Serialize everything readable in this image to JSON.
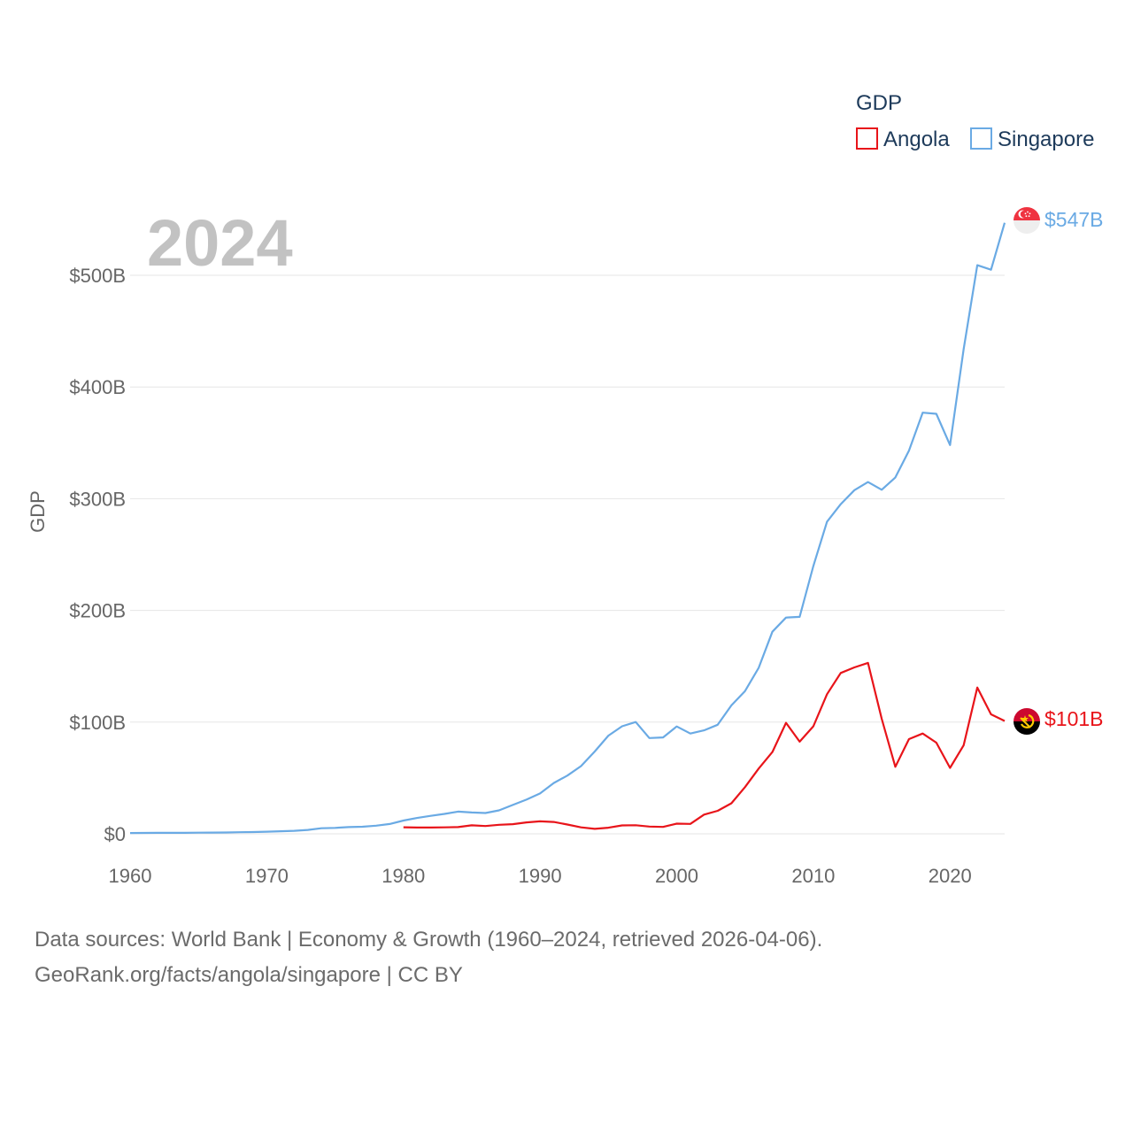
{
  "chart_data": {
    "type": "line",
    "title": "",
    "ylabel": "GDP",
    "xlabel": "",
    "year_label": "2024",
    "legend_title": "GDP",
    "xlim": [
      1960,
      2024
    ],
    "ylim": [
      0,
      500
    ],
    "x_ticks": [
      1960,
      1970,
      1980,
      1990,
      2000,
      2010,
      2020
    ],
    "y_ticks": [
      0,
      100,
      200,
      300,
      400,
      500
    ],
    "y_tick_labels": [
      "$0",
      "$100B",
      "$200B",
      "$300B",
      "$400B",
      "$500B"
    ],
    "series": [
      {
        "name": "Angola",
        "color": "#e8141a",
        "end_label": "$101B",
        "flag_icon": "angola-flag-icon",
        "x": [
          1980,
          1981,
          1982,
          1983,
          1984,
          1985,
          1986,
          1987,
          1988,
          1989,
          1990,
          1991,
          1992,
          1993,
          1994,
          1995,
          1996,
          1997,
          1998,
          1999,
          2000,
          2001,
          2002,
          2003,
          2004,
          2005,
          2006,
          2007,
          2008,
          2009,
          2010,
          2011,
          2012,
          2013,
          2014,
          2015,
          2016,
          2017,
          2018,
          2019,
          2020,
          2021,
          2022,
          2023,
          2024
        ],
        "values": [
          5.9,
          5.6,
          5.6,
          5.8,
          6.0,
          7.6,
          7.0,
          8.1,
          8.6,
          10.2,
          11.2,
          10.6,
          8.3,
          5.8,
          4.4,
          5.5,
          7.5,
          7.7,
          6.5,
          6.2,
          9.1,
          8.9,
          17.2,
          20.6,
          27.3,
          41.8,
          58.4,
          73.2,
          99.4,
          82.5,
          96.3,
          125.0,
          144.0,
          149.0,
          153.0,
          103.0,
          60.0,
          84.8,
          89.8,
          81.6,
          59.0,
          79.3,
          131.0,
          107.0,
          101.0
        ]
      },
      {
        "name": "Singapore",
        "color": "#6aaae4",
        "end_label": "$547B",
        "flag_icon": "singapore-flag-icon",
        "x": [
          1960,
          1961,
          1962,
          1963,
          1964,
          1965,
          1966,
          1967,
          1968,
          1969,
          1970,
          1971,
          1972,
          1973,
          1974,
          1975,
          1976,
          1977,
          1978,
          1979,
          1980,
          1981,
          1982,
          1983,
          1984,
          1985,
          1986,
          1987,
          1988,
          1989,
          1990,
          1991,
          1992,
          1993,
          1994,
          1995,
          1996,
          1997,
          1998,
          1999,
          2000,
          2001,
          2002,
          2003,
          2004,
          2005,
          2006,
          2007,
          2008,
          2009,
          2010,
          2011,
          2012,
          2013,
          2014,
          2015,
          2016,
          2017,
          2018,
          2019,
          2020,
          2021,
          2022,
          2023,
          2024
        ],
        "values": [
          0.7,
          0.8,
          0.9,
          0.9,
          0.9,
          1.0,
          1.1,
          1.2,
          1.4,
          1.6,
          1.9,
          2.3,
          2.7,
          3.5,
          5.0,
          5.3,
          6.0,
          6.3,
          7.3,
          8.8,
          11.9,
          14.2,
          16.1,
          17.8,
          19.9,
          19.1,
          18.6,
          21.0,
          25.8,
          30.6,
          36.1,
          45.5,
          52.1,
          60.6,
          73.7,
          87.9,
          96.3,
          100.1,
          85.7,
          86.3,
          96.1,
          89.8,
          92.6,
          97.6,
          115.0,
          127.8,
          148.6,
          180.9,
          193.6,
          194.2,
          239.8,
          279.4,
          295.1,
          307.6,
          314.9,
          308.0,
          319.0,
          343.0,
          377.0,
          376.0,
          348.0,
          434.0,
          509.0,
          505.0,
          547.0
        ]
      }
    ]
  },
  "source_line1": "Data sources: World Bank | Economy & Growth (1960–2024, retrieved 2026-04-06).",
  "source_line2": "GeoRank.org/facts/angola/singapore | CC BY"
}
